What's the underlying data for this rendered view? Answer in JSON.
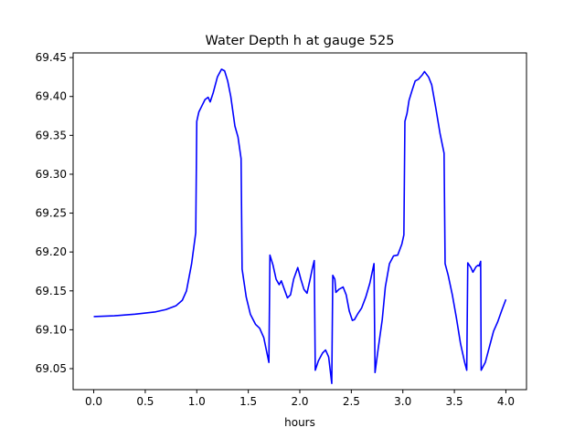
{
  "chart_data": {
    "type": "line",
    "title": "Water Depth h at gauge 525",
    "xlabel": "hours",
    "ylabel": "",
    "xlim": [
      -0.2,
      4.2
    ],
    "ylim": [
      69.023,
      69.456
    ],
    "xticks": [
      0.0,
      0.5,
      1.0,
      1.5,
      2.0,
      2.5,
      3.0,
      3.5,
      4.0
    ],
    "xtick_labels": [
      "0.0",
      "0.5",
      "1.0",
      "1.5",
      "2.0",
      "2.5",
      "3.0",
      "3.5",
      "4.0"
    ],
    "yticks": [
      69.05,
      69.1,
      69.15,
      69.2,
      69.25,
      69.3,
      69.35,
      69.4,
      69.45
    ],
    "ytick_labels": [
      "69.05",
      "69.10",
      "69.15",
      "69.20",
      "69.25",
      "69.30",
      "69.35",
      "69.40",
      "69.45"
    ],
    "grid": false,
    "legend": "none",
    "series": [
      {
        "color": "#0000ff",
        "points": [
          [
            0.0,
            69.117
          ],
          [
            0.2,
            69.118
          ],
          [
            0.4,
            69.12
          ],
          [
            0.6,
            69.123
          ],
          [
            0.7,
            69.126
          ],
          [
            0.8,
            69.131
          ],
          [
            0.86,
            69.138
          ],
          [
            0.9,
            69.15
          ],
          [
            0.95,
            69.185
          ],
          [
            0.99,
            69.225
          ],
          [
            1.0,
            69.368
          ],
          [
            1.02,
            69.38
          ],
          [
            1.05,
            69.388
          ],
          [
            1.08,
            69.396
          ],
          [
            1.11,
            69.399
          ],
          [
            1.13,
            69.393
          ],
          [
            1.16,
            69.405
          ],
          [
            1.2,
            69.425
          ],
          [
            1.24,
            69.435
          ],
          [
            1.27,
            69.433
          ],
          [
            1.3,
            69.42
          ],
          [
            1.33,
            69.4
          ],
          [
            1.37,
            69.362
          ],
          [
            1.4,
            69.348
          ],
          [
            1.43,
            69.32
          ],
          [
            1.44,
            69.178
          ],
          [
            1.48,
            69.142
          ],
          [
            1.52,
            69.12
          ],
          [
            1.57,
            69.107
          ],
          [
            1.61,
            69.102
          ],
          [
            1.65,
            69.09
          ],
          [
            1.7,
            69.058
          ],
          [
            1.71,
            69.196
          ],
          [
            1.74,
            69.183
          ],
          [
            1.77,
            69.165
          ],
          [
            1.8,
            69.158
          ],
          [
            1.82,
            69.163
          ],
          [
            1.85,
            69.152
          ],
          [
            1.88,
            69.141
          ],
          [
            1.91,
            69.145
          ],
          [
            1.94,
            69.165
          ],
          [
            1.98,
            69.18
          ],
          [
            2.01,
            69.165
          ],
          [
            2.04,
            69.152
          ],
          [
            2.07,
            69.147
          ],
          [
            2.1,
            69.165
          ],
          [
            2.12,
            69.178
          ],
          [
            2.14,
            69.189
          ],
          [
            2.15,
            69.048
          ],
          [
            2.18,
            69.06
          ],
          [
            2.22,
            69.07
          ],
          [
            2.25,
            69.074
          ],
          [
            2.28,
            69.065
          ],
          [
            2.31,
            69.031
          ],
          [
            2.32,
            69.17
          ],
          [
            2.34,
            69.165
          ],
          [
            2.35,
            69.148
          ],
          [
            2.38,
            69.152
          ],
          [
            2.42,
            69.155
          ],
          [
            2.45,
            69.145
          ],
          [
            2.48,
            69.124
          ],
          [
            2.51,
            69.112
          ],
          [
            2.53,
            69.113
          ],
          [
            2.56,
            69.12
          ],
          [
            2.6,
            69.128
          ],
          [
            2.64,
            69.142
          ],
          [
            2.68,
            69.16
          ],
          [
            2.72,
            69.185
          ],
          [
            2.73,
            69.045
          ],
          [
            2.76,
            69.075
          ],
          [
            2.8,
            69.113
          ],
          [
            2.83,
            69.155
          ],
          [
            2.87,
            69.185
          ],
          [
            2.91,
            69.195
          ],
          [
            2.95,
            69.196
          ],
          [
            2.99,
            69.21
          ],
          [
            3.01,
            69.222
          ],
          [
            3.02,
            69.368
          ],
          [
            3.04,
            69.378
          ],
          [
            3.06,
            69.395
          ],
          [
            3.09,
            69.408
          ],
          [
            3.12,
            69.42
          ],
          [
            3.15,
            69.422
          ],
          [
            3.19,
            69.428
          ],
          [
            3.21,
            69.432
          ],
          [
            3.25,
            69.425
          ],
          [
            3.28,
            69.415
          ],
          [
            3.32,
            69.385
          ],
          [
            3.36,
            69.353
          ],
          [
            3.4,
            69.327
          ],
          [
            3.41,
            69.185
          ],
          [
            3.44,
            69.17
          ],
          [
            3.48,
            69.145
          ],
          [
            3.52,
            69.115
          ],
          [
            3.56,
            69.082
          ],
          [
            3.6,
            69.058
          ],
          [
            3.62,
            69.048
          ],
          [
            3.63,
            69.186
          ],
          [
            3.66,
            69.18
          ],
          [
            3.68,
            69.174
          ],
          [
            3.71,
            69.181
          ],
          [
            3.73,
            69.183
          ],
          [
            3.74,
            69.182
          ],
          [
            3.755,
            69.188
          ],
          [
            3.76,
            69.048
          ],
          [
            3.8,
            69.058
          ],
          [
            3.84,
            69.078
          ],
          [
            3.88,
            69.098
          ],
          [
            3.92,
            69.11
          ],
          [
            3.96,
            69.125
          ],
          [
            4.0,
            69.139
          ]
        ]
      }
    ]
  }
}
